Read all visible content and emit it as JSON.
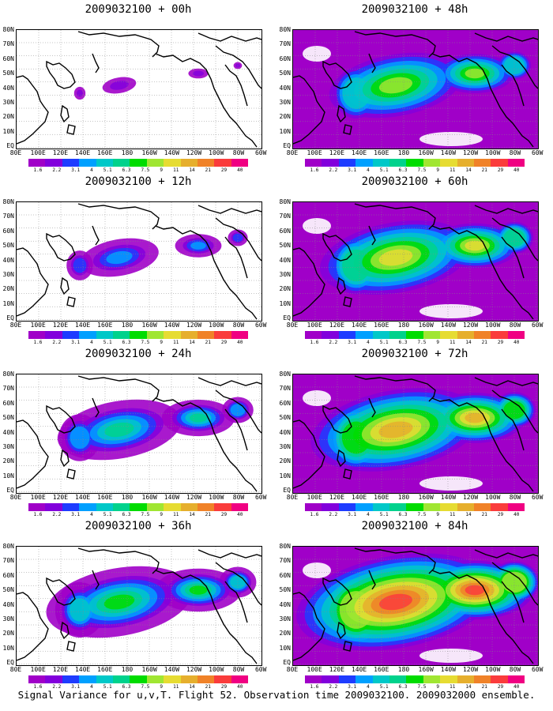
{
  "panels": [
    {
      "title": "2009032100 + 00h",
      "intensity": 0.15
    },
    {
      "title": "2009032100 + 48h",
      "intensity": 0.8
    },
    {
      "title": "2009032100 + 12h",
      "intensity": 0.35
    },
    {
      "title": "2009032100 + 60h",
      "intensity": 0.9
    },
    {
      "title": "2009032100 + 24h",
      "intensity": 0.55
    },
    {
      "title": "2009032100 + 72h",
      "intensity": 1.0
    },
    {
      "title": "2009032100 + 36h",
      "intensity": 0.65
    },
    {
      "title": "2009032100 + 84h",
      "intensity": 1.15
    }
  ],
  "lat_labels": [
    "80N",
    "70N",
    "60N",
    "50N",
    "40N",
    "30N",
    "20N",
    "10N",
    "EQ"
  ],
  "lon_labels": [
    "80E",
    "100E",
    "120E",
    "140E",
    "160E",
    "180",
    "160W",
    "140W",
    "120W",
    "100W",
    "80W",
    "60W"
  ],
  "colorbar": {
    "levels": [
      "1.6",
      "2.2",
      "3.1",
      "4",
      "5.1",
      "6.3",
      "7.5",
      "9",
      "11",
      "14",
      "21",
      "29",
      "40"
    ],
    "colors": [
      "#a000c8",
      "#8200dc",
      "#1e3cff",
      "#00a0ff",
      "#00c8c8",
      "#00d28c",
      "#00dc00",
      "#a0e632",
      "#e6dc32",
      "#e6af2d",
      "#f08228",
      "#fa3c3c",
      "#f00082"
    ]
  },
  "caption": "Signal Variance for u,v,T. Flight 52. Observation time 2009032100. 2009032000 ensemble."
}
